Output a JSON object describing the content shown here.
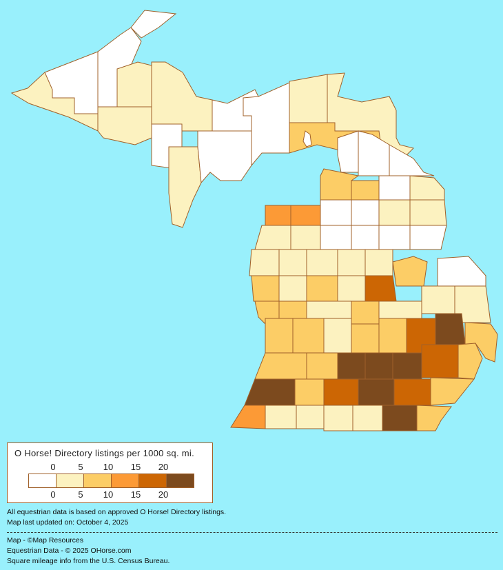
{
  "legend": {
    "title": "O Horse! Directory listings per 1000 sq. mi.",
    "ticks_top": [
      "0",
      "5",
      "10",
      "15",
      "20"
    ],
    "ticks_bottom": [
      "0",
      "5",
      "10",
      "15",
      "20"
    ],
    "colors": [
      "#ffffff",
      "#fcf2c0",
      "#fccd66",
      "#fc9a36",
      "#cc6604",
      "#7c4a1e"
    ]
  },
  "notes": {
    "line1": "All equestrian data is based on approved O Horse! Directory listings.",
    "line2": "Map last updated on: October 4, 2025"
  },
  "credits": {
    "map": "Map - ©Map Resources",
    "data": "Equestrian Data - © 2025 OHorse.com",
    "census": "Square mileage info from the U.S. Census Bureau."
  },
  "colors": {
    "water": "#99f0fc",
    "border": "#a0602a"
  },
  "county_levels": [
    1,
    0,
    0,
    0,
    1,
    1,
    1,
    0,
    1,
    0,
    0,
    0,
    1,
    1,
    2,
    0,
    0,
    0,
    2,
    2,
    0,
    1,
    3,
    3,
    0,
    0,
    1,
    1,
    1,
    1,
    0,
    0,
    0,
    0,
    1,
    1,
    1,
    1,
    1,
    2,
    2,
    1,
    2,
    1,
    0,
    2,
    2,
    1,
    2,
    1,
    1,
    1,
    4,
    2,
    2,
    1,
    2,
    2,
    4,
    5,
    2,
    2,
    2,
    5,
    5,
    5,
    4,
    2,
    5,
    2,
    4,
    5,
    4,
    2,
    3,
    1,
    1,
    1,
    1,
    5,
    2
  ]
}
